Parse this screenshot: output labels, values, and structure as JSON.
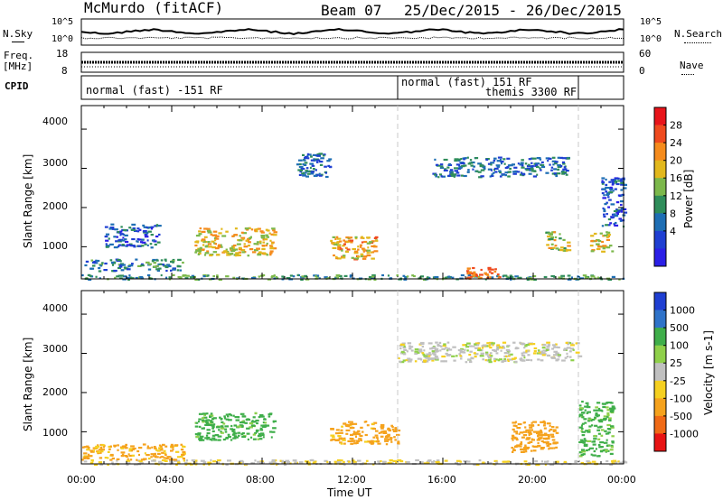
{
  "header": {
    "station": "McMurdo (fitACF)",
    "beam": "Beam 07",
    "date_range": "25/Dec/2015 - 26/Dec/2015"
  },
  "left_labels": {
    "nsky": "N.Sky",
    "freq": "Freq.",
    "freq_unit": "[MHz]",
    "cpid": "CPID"
  },
  "right_labels": {
    "nsearch": "N.Search",
    "nave": "Nave"
  },
  "noise_axis": {
    "left_top": "10^5",
    "left_bottom": "10^0",
    "right_top": "10^5",
    "right_bottom": "10^0"
  },
  "freq_axis": {
    "left_top": "18",
    "left_bottom": "8",
    "right_top": "60",
    "right_bottom": "0"
  },
  "cpid": [
    {
      "label": "normal (fast) -151 RF",
      "start_h": 0,
      "end_h": 14
    },
    {
      "label": "normal (fast) 151 RF",
      "start_h": 14,
      "end_h": 22
    },
    {
      "label": "themis 3300 RF",
      "start_h": 14,
      "end_h": 22
    }
  ],
  "mode_changes_h": [
    14,
    22
  ],
  "chart_data": [
    {
      "type": "heatmap",
      "name": "Power",
      "ylabel": "Slant Range [km]",
      "colorbar_label": "Power [dB]",
      "colorbar_ticks": [
        "28",
        "24",
        "20",
        "16",
        "12",
        "8",
        "4"
      ],
      "colorbar_colors": [
        "#e8141a",
        "#ef4a1e",
        "#f58b1c",
        "#e2b81c",
        "#7cb84b",
        "#2f8d5a",
        "#1e6eb4",
        "#1f3fd2",
        "#2b1fe6"
      ],
      "yticks": [
        "4000",
        "3000",
        "2000",
        "1000"
      ],
      "ylim": [
        180,
        4600
      ],
      "xlim_h": [
        0,
        24
      ],
      "features": [
        {
          "t0": 0.0,
          "t1": 24.0,
          "r0": 180,
          "r1": 300,
          "level": 14
        },
        {
          "t0": 0.0,
          "t1": 4.5,
          "r0": 400,
          "r1": 700,
          "level": 12
        },
        {
          "t0": 5.0,
          "t1": 8.5,
          "r0": 800,
          "r1": 1500,
          "level": 22
        },
        {
          "t0": 11.0,
          "t1": 13.0,
          "r0": 700,
          "r1": 1300,
          "level": 24
        },
        {
          "t0": 17.0,
          "t1": 18.5,
          "r0": 200,
          "r1": 500,
          "level": 30
        },
        {
          "t0": 20.5,
          "t1": 21.5,
          "r0": 900,
          "r1": 1400,
          "level": 20
        },
        {
          "t0": 22.5,
          "t1": 23.5,
          "r0": 900,
          "r1": 1400,
          "level": 22
        },
        {
          "t0": 9.5,
          "t1": 11.0,
          "r0": 2800,
          "r1": 3400,
          "level": 10
        },
        {
          "t0": 15.5,
          "t1": 21.5,
          "r0": 2800,
          "r1": 3300,
          "level": 10
        },
        {
          "t0": 1.0,
          "t1": 3.5,
          "r0": 1000,
          "r1": 1600,
          "level": 8
        },
        {
          "t0": 23.0,
          "t1": 24.0,
          "r0": 1500,
          "r1": 2800,
          "level": 8
        }
      ]
    },
    {
      "type": "heatmap",
      "name": "Velocity",
      "ylabel": "Slant Range [km]",
      "colorbar_label": "Velocity [m s-1]",
      "colorbar_ticks": [
        "1000",
        "500",
        "100",
        "25",
        "-25",
        "-100",
        "-500",
        "-1000"
      ],
      "colorbar_colors": [
        "#1f3fd2",
        "#2f73c9",
        "#3fae4a",
        "#8fd04a",
        "#c0c0c0",
        "#f5d020",
        "#f5a21d",
        "#f06a16",
        "#e81414"
      ],
      "yticks": [
        "4000",
        "3000",
        "2000",
        "1000"
      ],
      "ylim": [
        180,
        4600
      ],
      "xlim_h": [
        0,
        24
      ],
      "features": [
        {
          "t0": 0.0,
          "t1": 24.0,
          "r0": 180,
          "r1": 300,
          "level": -20
        },
        {
          "t0": 0.0,
          "t1": 4.5,
          "r0": 300,
          "r1": 700,
          "level": -150
        },
        {
          "t0": 5.0,
          "t1": 8.5,
          "r0": 800,
          "r1": 1500,
          "level": 150
        },
        {
          "t0": 11.0,
          "t1": 13.0,
          "r0": 700,
          "r1": 1300,
          "level": -150
        },
        {
          "t0": 13.0,
          "t1": 14.0,
          "r0": 700,
          "r1": 1200,
          "level": -300
        },
        {
          "t0": 14.0,
          "t1": 22.0,
          "r0": 2800,
          "r1": 3300,
          "level": 0
        },
        {
          "t0": 19.0,
          "t1": 21.0,
          "r0": 500,
          "r1": 1300,
          "level": -200
        },
        {
          "t0": 22.0,
          "t1": 23.5,
          "r0": 400,
          "r1": 1800,
          "level": 150
        }
      ]
    }
  ],
  "x_axis": {
    "ticks": [
      "00:00",
      "04:00",
      "08:00",
      "12:00",
      "16:00",
      "20:00",
      "00:00"
    ],
    "label": "Time UT"
  }
}
